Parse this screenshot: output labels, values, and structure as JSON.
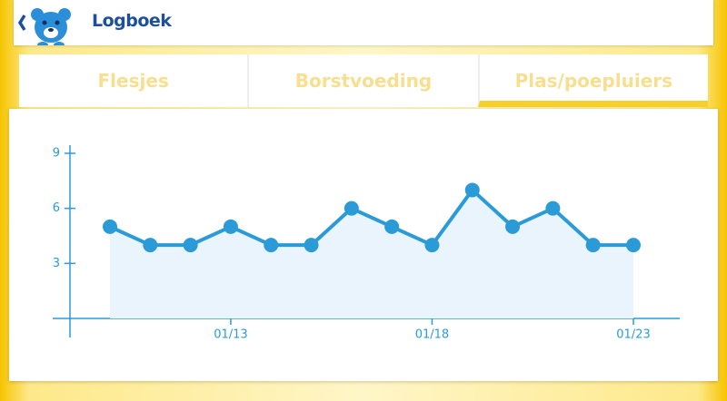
{
  "header": {
    "title": "Logboek"
  },
  "tabs": [
    "Flesjes",
    "Borstvoeding",
    "Plas/poepluiers"
  ],
  "active_tab": 2,
  "chart_data": {
    "type": "line",
    "categories": [
      null,
      null,
      null,
      "01/13",
      null,
      null,
      null,
      null,
      "01/18",
      null,
      null,
      null,
      null,
      "01/23"
    ],
    "values": [
      5,
      4,
      4,
      5,
      4,
      4,
      6,
      5,
      4,
      7,
      5,
      6,
      4,
      4
    ],
    "color": "#2b9bd7",
    "ylim": [
      0,
      9
    ],
    "yticks": [
      3,
      6,
      9
    ]
  }
}
